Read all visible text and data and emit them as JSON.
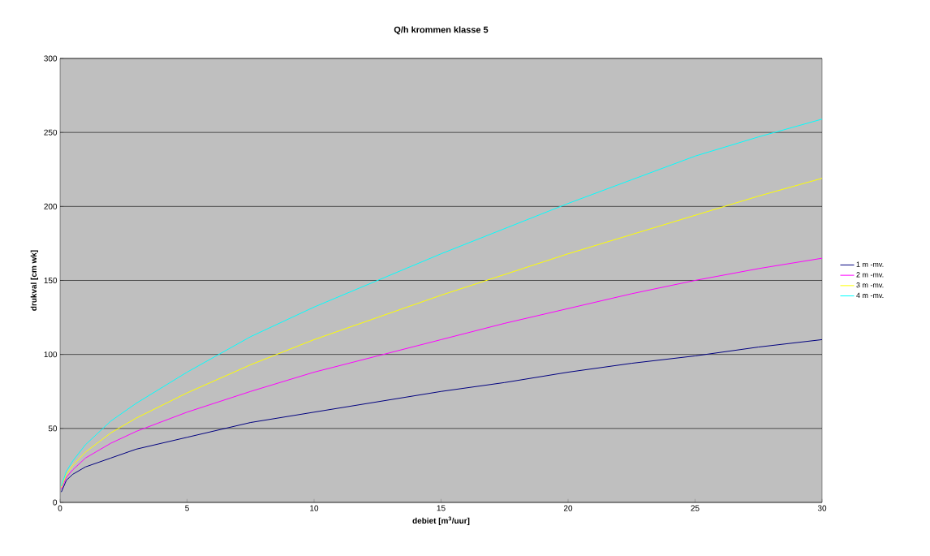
{
  "chart_data": {
    "type": "line",
    "title": "Q/h krommen klasse 5",
    "xlabel": "debiet [m$^{3}$/uur]",
    "ylabel": "drukval [cm wk]",
    "x": [
      0.05,
      0.25,
      0.5,
      1,
      2,
      3,
      5,
      7.5,
      10,
      12.5,
      15,
      17.5,
      20,
      22.5,
      25,
      27.5,
      30
    ],
    "series": [
      {
        "name": "1 m -mv.",
        "color": "#000080",
        "values": [
          7,
          15,
          19,
          24,
          30,
          36,
          44,
          54,
          61,
          68,
          75,
          81,
          88,
          94,
          99,
          105,
          110
        ]
      },
      {
        "name": "2 m -mv.",
        "color": "#ff00ff",
        "values": [
          9,
          17,
          22,
          30,
          40,
          48,
          61,
          75,
          88,
          99,
          110,
          121,
          131,
          141,
          150,
          158,
          165
        ]
      },
      {
        "name": "3 m -mv.",
        "color": "#ffff00",
        "values": [
          10,
          19,
          25,
          34,
          47,
          57,
          74,
          93,
          110,
          125,
          140,
          154,
          168,
          181,
          194,
          207,
          219
        ]
      },
      {
        "name": "4 m -mv.",
        "color": "#00ffff",
        "values": [
          11,
          21,
          28,
          39,
          55,
          67,
          88,
          112,
          132,
          150,
          168,
          185,
          202,
          218,
          234,
          247,
          259
        ]
      }
    ],
    "xlim": [
      0,
      30
    ],
    "ylim": [
      0,
      300
    ],
    "xticks": [
      0,
      5,
      10,
      15,
      20,
      25,
      30
    ],
    "yticks": [
      0,
      50,
      100,
      150,
      200,
      250,
      300
    ],
    "grid": "y",
    "legend": "right",
    "marker": "none",
    "line_style": "solid"
  }
}
